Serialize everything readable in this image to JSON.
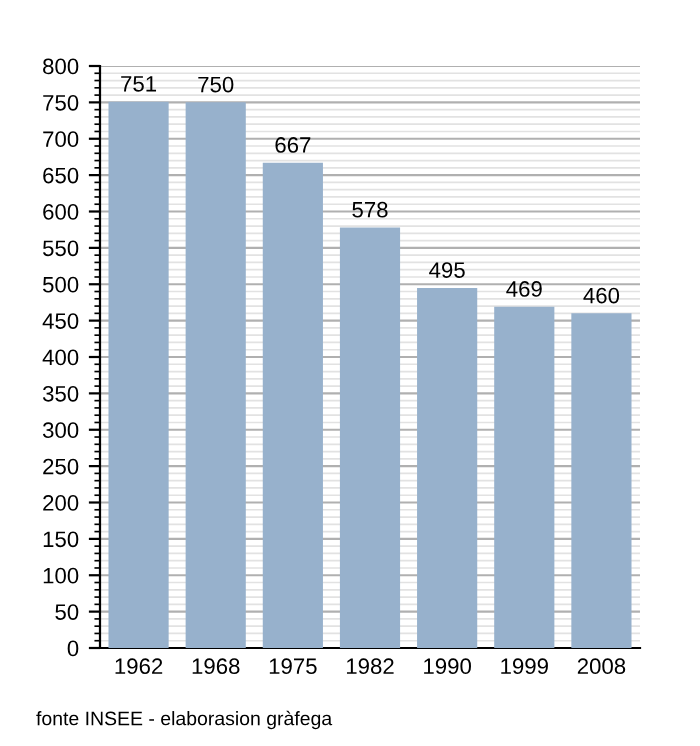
{
  "chart_data": {
    "type": "bar",
    "categories": [
      "1962",
      "1968",
      "1975",
      "1982",
      "1990",
      "1999",
      "2008"
    ],
    "values": [
      751,
      750,
      667,
      578,
      495,
      469,
      460
    ],
    "color": "#97b1cc",
    "ylim": [
      0,
      800
    ],
    "yticks": [
      0,
      50,
      100,
      150,
      200,
      250,
      300,
      350,
      400,
      450,
      500,
      550,
      600,
      650,
      700,
      750,
      800
    ],
    "grid": "y",
    "data_labels": true,
    "annotations": [
      "fonte INSEE - elaborasion gràfega"
    ]
  }
}
